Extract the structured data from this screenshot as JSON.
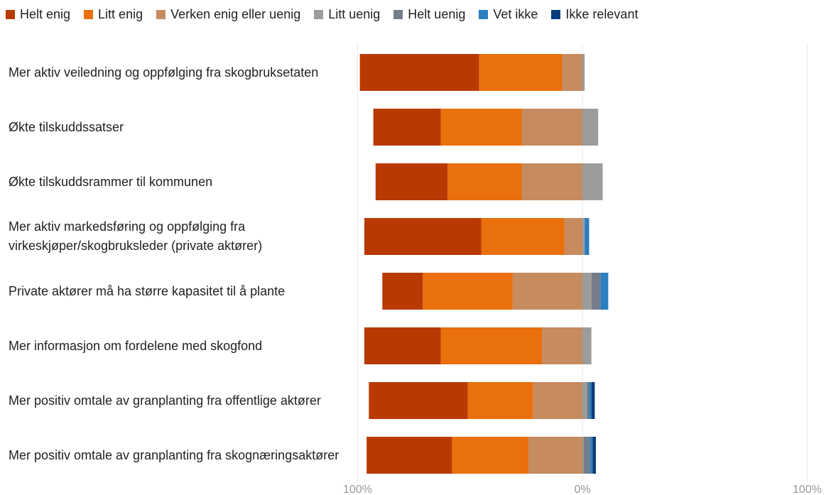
{
  "chart_data": {
    "type": "bar",
    "orientation": "horizontal",
    "stacked": "diverging",
    "title": "",
    "xlabel": "",
    "ylabel": "",
    "x_tick_labels": [
      "100%",
      "0%",
      "100%"
    ],
    "xlim": [
      -100,
      100
    ],
    "grid": true,
    "legend_position": "top",
    "categories": [
      "Mer aktiv veiledning og oppfølging fra skogbruksetaten",
      "Økte tilskuddssatser",
      "Økte tilskuddsrammer til kommunen",
      "Mer aktiv markedsføring og oppfølging fra virkeskjøper/skogbruksleder (private aktører)",
      "Private aktører må ha større kapasitet til å plante",
      "Mer informasjon om fordelene med skogfond",
      "Mer positiv omtale av granplanting fra offentlige aktører",
      "Mer positiv omtale av granplanting fra skognæringsaktører"
    ],
    "series": [
      {
        "name": "Helt enig",
        "color": "#B83A02",
        "values": [
          53,
          30,
          32,
          52,
          18,
          34,
          44,
          38
        ]
      },
      {
        "name": "Litt enig",
        "color": "#E9700C",
        "values": [
          37,
          36,
          33,
          37,
          40,
          45,
          29,
          34
        ]
      },
      {
        "name": "Verken enig eller uenig",
        "color": "#C68B5F",
        "values": [
          9,
          27,
          27,
          8,
          31,
          18,
          22,
          24
        ]
      },
      {
        "name": "Litt uenig",
        "color": "#9C9C9C",
        "values": [
          1,
          7,
          9,
          1,
          4,
          4,
          2,
          0.5
        ]
      },
      {
        "name": "Helt uenig",
        "color": "#747D89",
        "values": [
          0,
          0,
          0,
          0,
          4,
          0,
          1,
          3
        ]
      },
      {
        "name": "Vet ikke",
        "color": "#2B7EC0",
        "values": [
          0,
          0,
          0,
          2,
          3.5,
          0,
          1,
          1
        ]
      },
      {
        "name": "Ikke relevant",
        "color": "#0A3E7D",
        "values": [
          0,
          0,
          0,
          0,
          0,
          0,
          1.5,
          1.5
        ]
      }
    ],
    "diverging_split": "Litt uenig, Helt uenig, Vet ikke and Ikke relevant extend to the right of 0%; Helt enig, Litt enig and Verken enig eller uenig extend to the left"
  }
}
